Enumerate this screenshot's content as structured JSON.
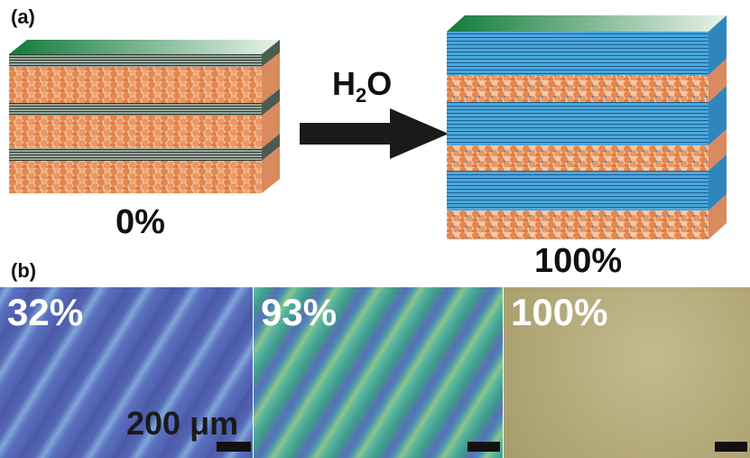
{
  "panel_a": {
    "label": "(a)",
    "left_percent": "0%",
    "right_percent": "100%",
    "arrow_label_main": "H",
    "arrow_label_sub": "2",
    "arrow_label_tail": "O"
  },
  "panel_b": {
    "label": "(b)",
    "images": [
      {
        "percent": "32%"
      },
      {
        "percent": "93%"
      },
      {
        "percent": "100%"
      }
    ],
    "scale_text": "200 μm"
  },
  "colors": {
    "film_green": "#1f8a4c",
    "film_edge_dark": "#3a3a3a",
    "swollen_blue": "#3aa0d8",
    "bead_orange": "#e88e5a",
    "micro1": "#5a6fb8",
    "micro2": "#4fa6a0",
    "micro3": "#b7ad80"
  }
}
